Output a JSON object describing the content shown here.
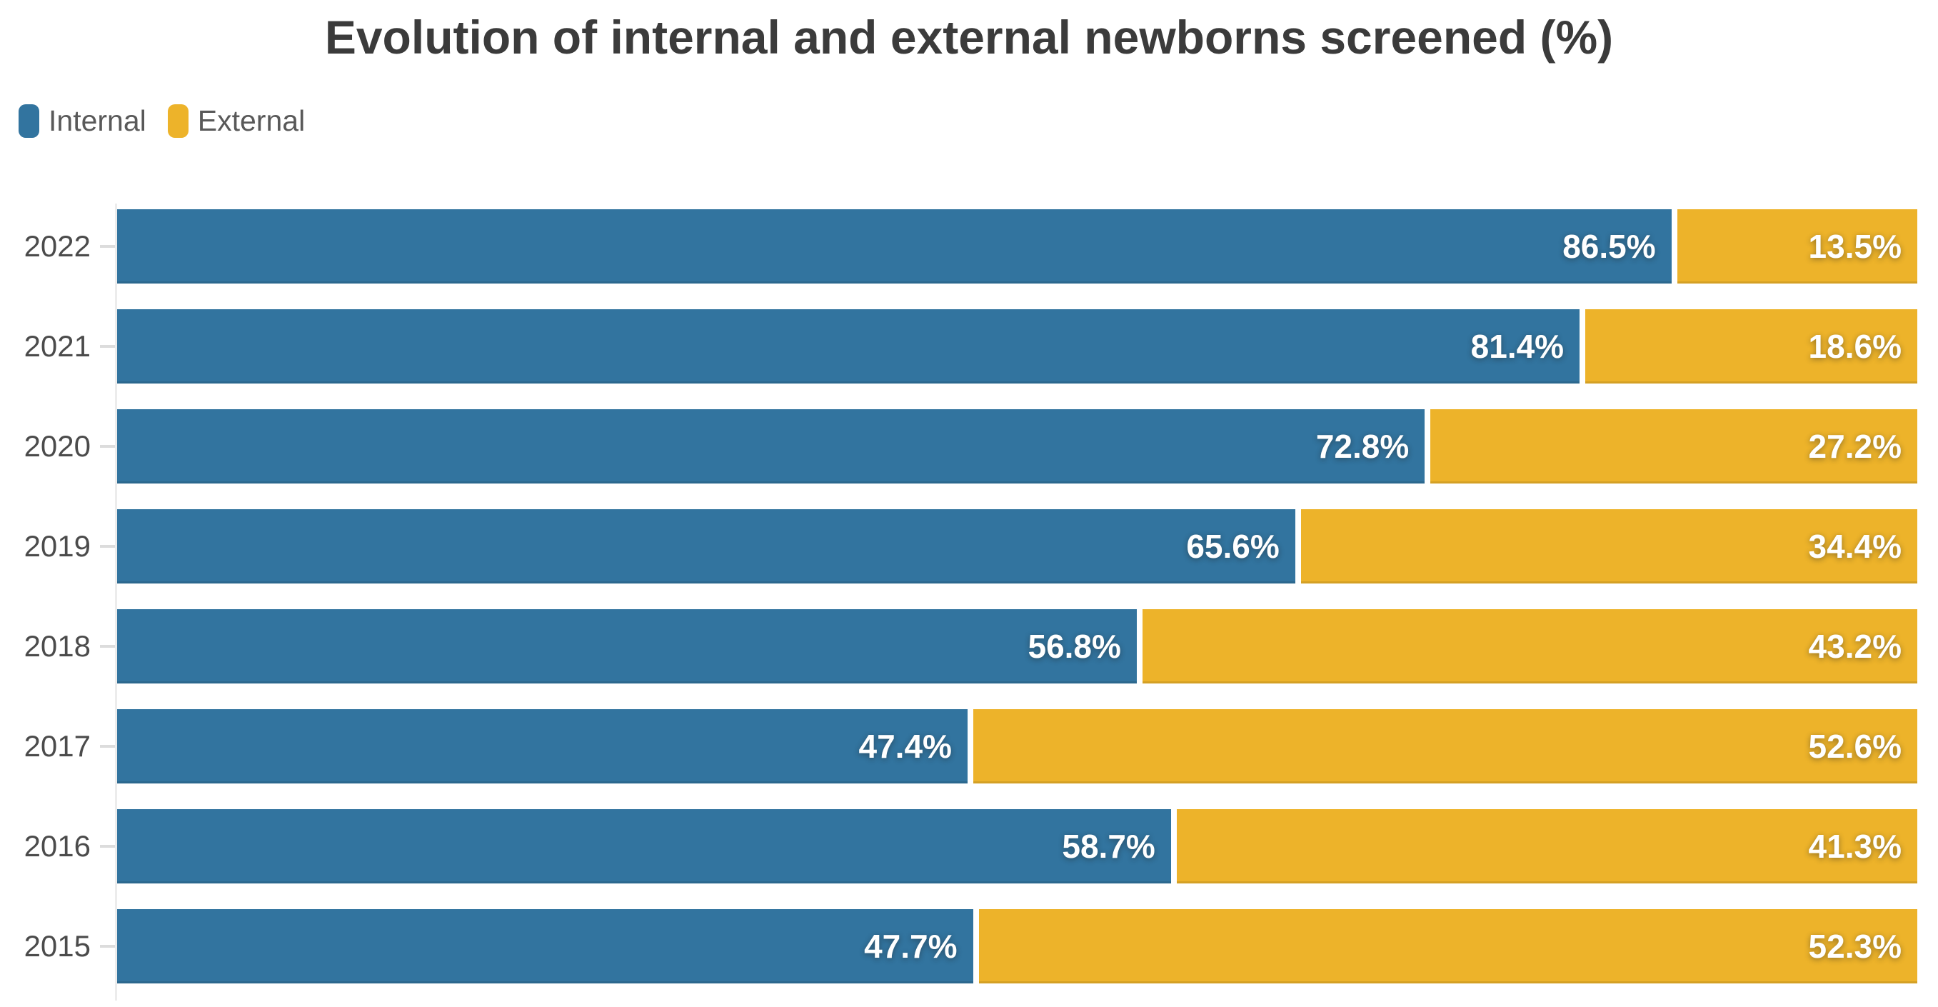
{
  "title": "Evolution of internal and external newborns screened (%)",
  "legend": {
    "items": [
      {
        "label": "Internal",
        "color": "#32749F"
      },
      {
        "label": "External",
        "color": "#EDB32A"
      }
    ]
  },
  "colors": {
    "internal_bar": "#32749F",
    "external_bar": "#EDB32A",
    "title_text": "#3B3B3B",
    "year_label_text": "#4B4B4B",
    "legend_text": "#595959",
    "axis_line": "#ECECEC",
    "bar_value_text": "#FFFFFF",
    "background": "#FFFFFF"
  },
  "chart_data": {
    "type": "bar",
    "orientation": "horizontal",
    "stacked": true,
    "title": "Evolution of internal and external newborns screened (%)",
    "categories": [
      "2022",
      "2021",
      "2020",
      "2019",
      "2018",
      "2017",
      "2016",
      "2015"
    ],
    "series": [
      {
        "name": "Internal",
        "color": "#32749F",
        "values": [
          86.5,
          81.4,
          72.8,
          65.6,
          56.8,
          47.4,
          58.7,
          47.7
        ]
      },
      {
        "name": "External",
        "color": "#EDB32A",
        "values": [
          13.5,
          18.6,
          27.2,
          34.4,
          43.2,
          52.6,
          41.3,
          52.3
        ]
      }
    ],
    "value_suffix": "%",
    "value_decimals": 1,
    "xlim": [
      0,
      100
    ],
    "grid": false,
    "legend_position": "top-left",
    "bar_labels": "inside-end"
  }
}
